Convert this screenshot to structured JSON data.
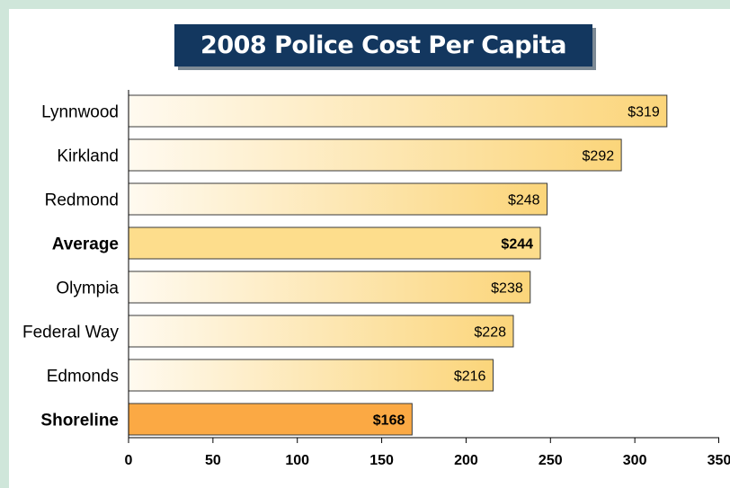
{
  "chart_data": {
    "type": "bar",
    "orientation": "horizontal",
    "title": "2008 Police Cost Per Capita",
    "categories": [
      "Lynnwood",
      "Kirkland",
      "Redmond",
      "Average",
      "Olympia",
      "Federal Way",
      "Edmonds",
      "Shoreline"
    ],
    "values": [
      319,
      292,
      248,
      244,
      238,
      228,
      216,
      168
    ],
    "value_labels": [
      "$319",
      "$292",
      "$248",
      "$244",
      "$238",
      "$228",
      "$216",
      "$168"
    ],
    "highlighted": [
      "Average",
      "Shoreline"
    ],
    "xlim": [
      0,
      350
    ],
    "xticks": [
      0,
      50,
      100,
      150,
      200,
      250,
      300,
      350
    ],
    "xlabel": "",
    "ylabel": "",
    "grid": false,
    "legend": "none",
    "colors": {
      "bar_light": "#fffaf0",
      "bar_dark": "#fbd57a",
      "average_fill": "#fddd8c",
      "shoreline_fill": "#fba944",
      "title_background": "#13375f",
      "background": "#cfe6da"
    }
  }
}
